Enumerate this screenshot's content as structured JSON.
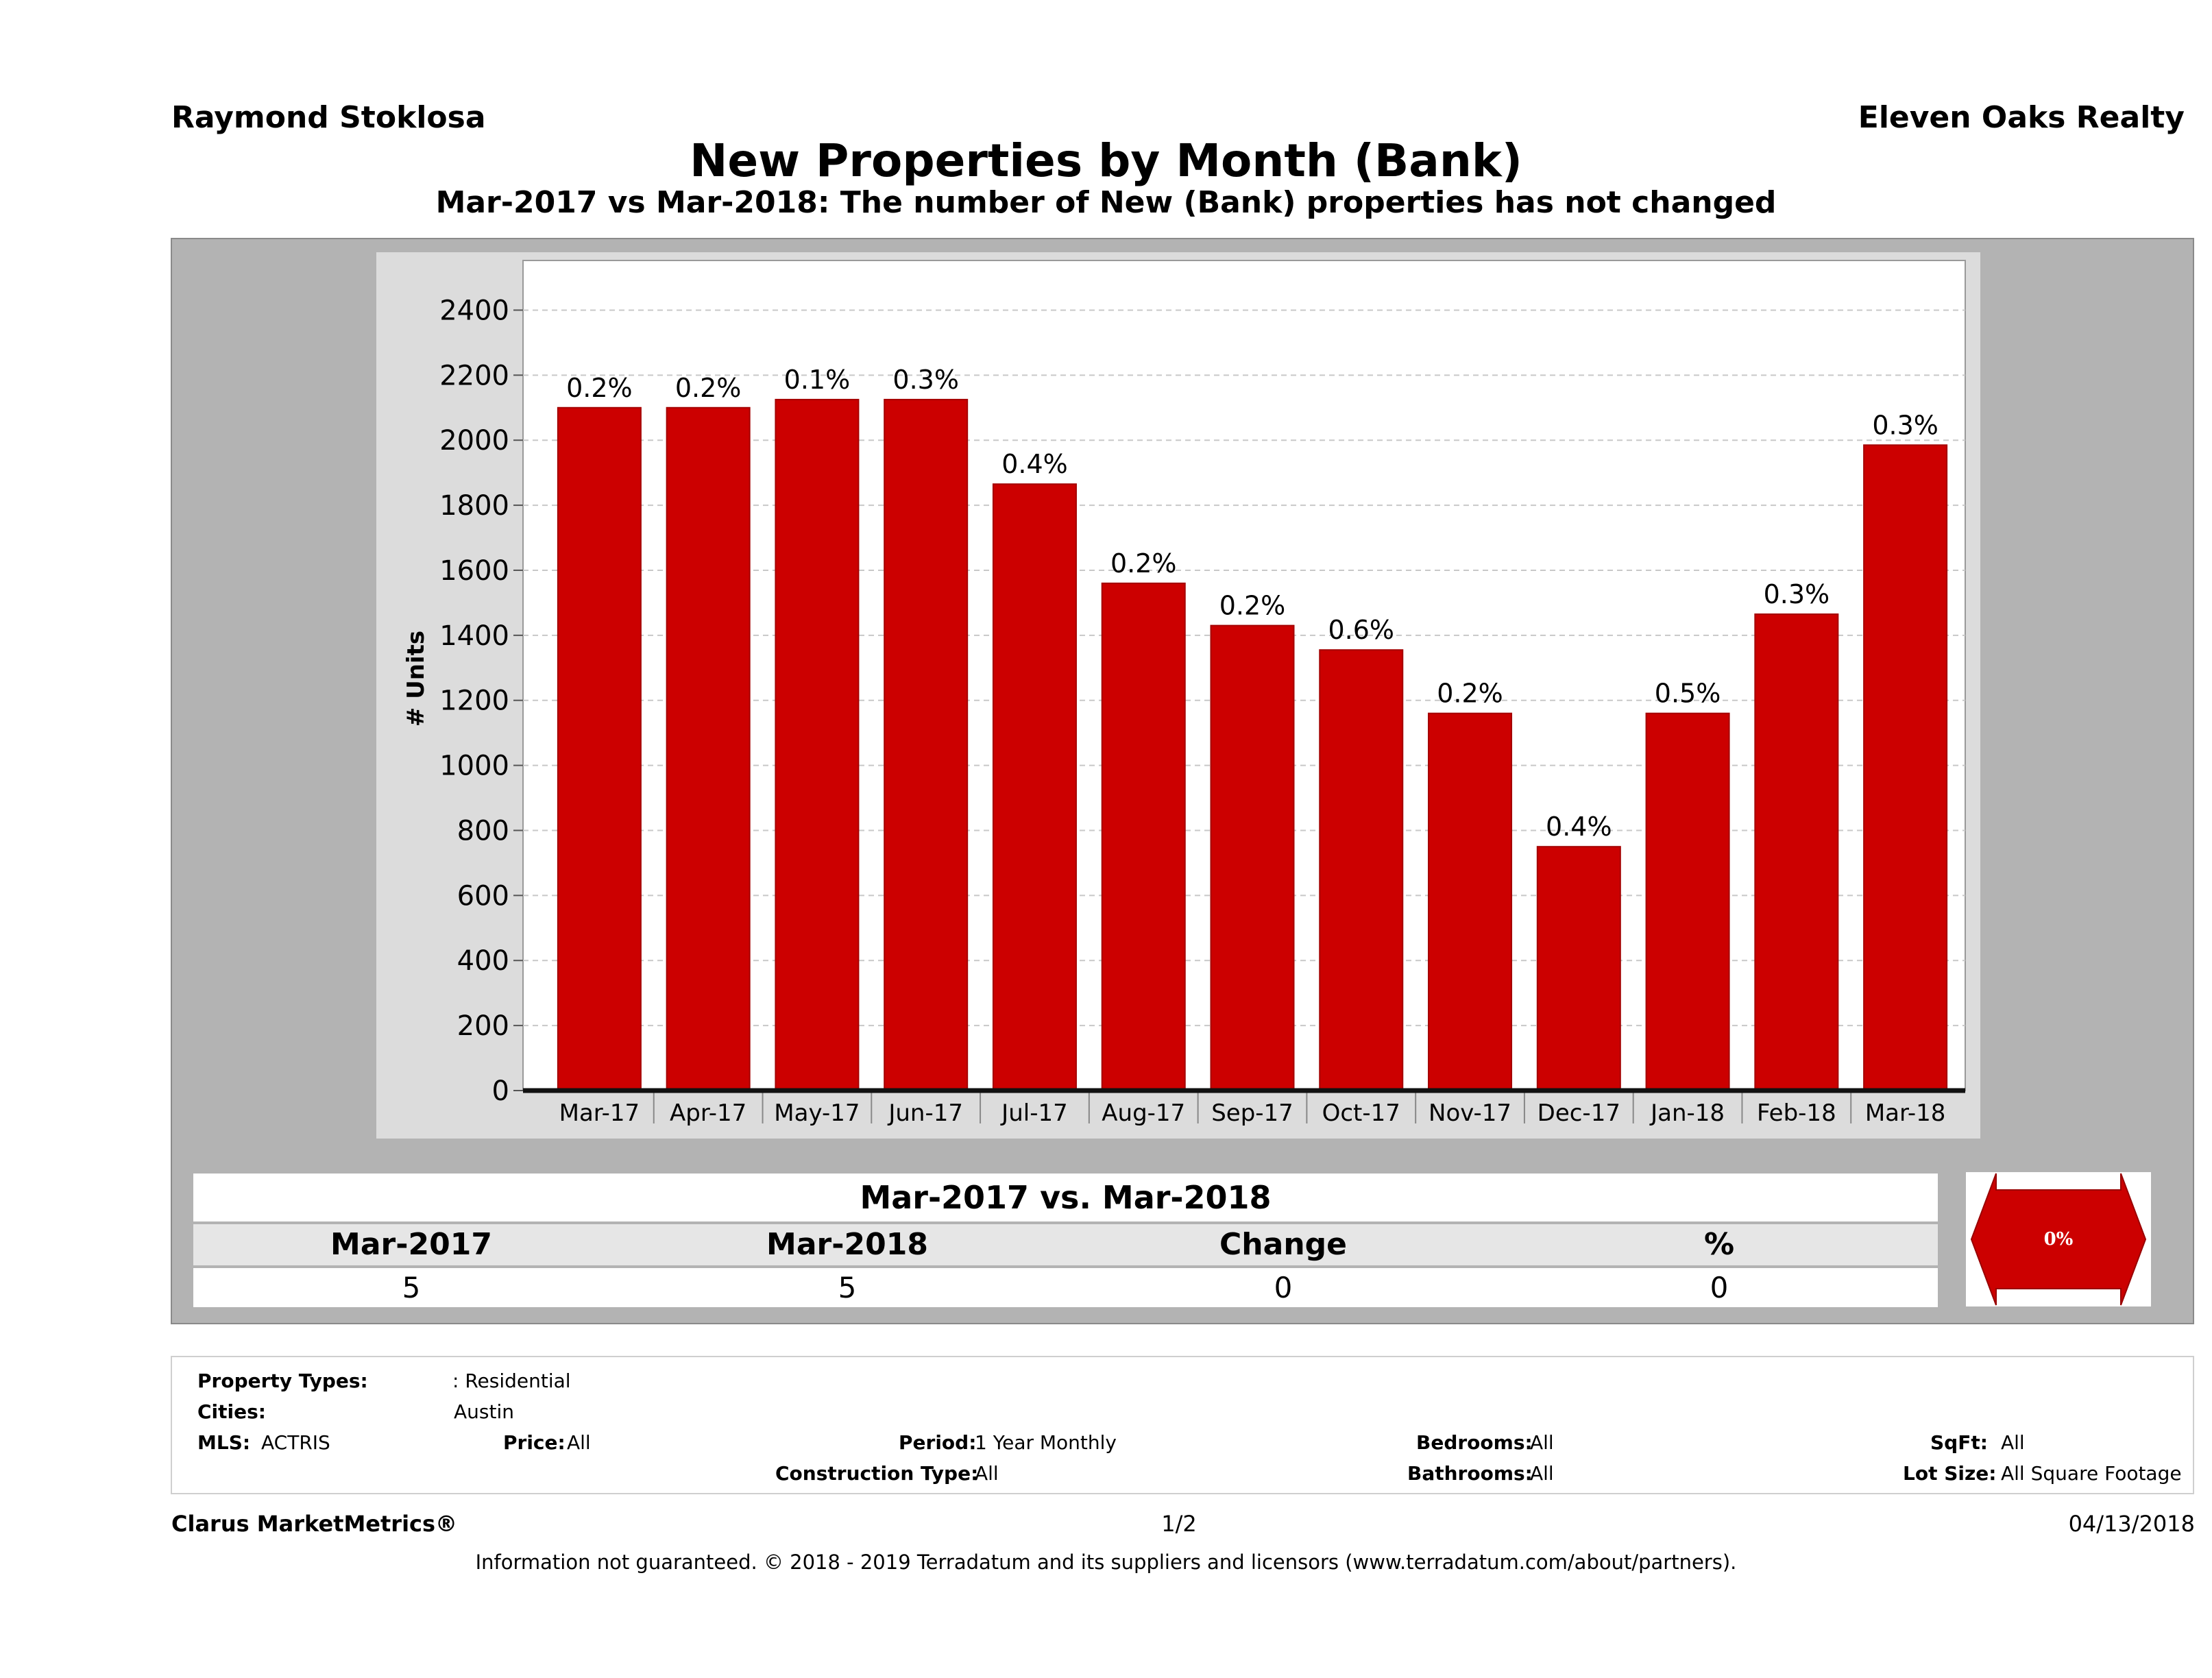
{
  "header": {
    "agent": "Raymond Stoklosa",
    "company": "Eleven Oaks Realty",
    "title": "New Properties by Month (Bank)",
    "subtitle": "Mar-2017 vs Mar-2018: The number of New (Bank)  properties has not changed"
  },
  "chart_data": {
    "type": "bar",
    "title": "New Properties by Month (Bank)",
    "ylabel": "# Units",
    "xlabel": "",
    "ylim": [
      0,
      2500
    ],
    "yticks": [
      0,
      200,
      400,
      600,
      800,
      1000,
      1200,
      1400,
      1600,
      1800,
      2000,
      2200,
      2400
    ],
    "grid": true,
    "categories": [
      "Mar-17",
      "Apr-17",
      "May-17",
      "Jun-17",
      "Jul-17",
      "Aug-17",
      "Sep-17",
      "Oct-17",
      "Nov-17",
      "Dec-17",
      "Jan-18",
      "Feb-18",
      "Mar-18"
    ],
    "series": [
      {
        "name": "",
        "values": [
          2100,
          2100,
          2125,
          2125,
          1865,
          1560,
          1430,
          1355,
          1160,
          750,
          1160,
          1465,
          1985
        ],
        "labels": [
          "0.2%",
          "0.2%",
          "0.1%",
          "0.3%",
          "0.4%",
          "0.2%",
          "0.2%",
          "0.6%",
          "0.2%",
          "0.4%",
          "0.5%",
          "0.3%",
          "0.3%"
        ]
      }
    ],
    "colors": {
      "bar": "#cc0000",
      "bar_edge": "#a50000",
      "panel": "#dcdcdc",
      "frame": "#b3b3b3"
    }
  },
  "comparison": {
    "title": "Mar-2017 vs. Mar-2018",
    "headers": [
      "Mar-2017",
      "Mar-2018",
      "Change",
      "%"
    ],
    "values": [
      "5",
      "5",
      "0",
      "0"
    ],
    "indicator": "0%"
  },
  "filters": {
    "property_types_label": "Property Types:",
    "property_types_value": ": Residential",
    "cities_label": "Cities:",
    "cities_value": "Austin",
    "mls_label": "MLS:",
    "mls_value": "ACTRIS",
    "price_label": "Price:",
    "price_value": "All",
    "period_label": "Period:",
    "period_value": "1 Year Monthly",
    "construction_label": "Construction Type:",
    "construction_value": "All",
    "bedrooms_label": "Bedrooms:",
    "bedrooms_value": "All",
    "bathrooms_label": "Bathrooms:",
    "bathrooms_value": "All",
    "sqft_label": "SqFt:",
    "sqft_value": "All",
    "lotsize_label": "Lot Size:",
    "lotsize_value": "All Square Footage"
  },
  "footer": {
    "brand": "Clarus MarketMetrics®",
    "page": "1/2",
    "date": "04/13/2018",
    "disclaimer": "Information not guaranteed. © 2018 - 2019 Terradatum and its suppliers and licensors (www.terradatum.com/about/partners)."
  }
}
